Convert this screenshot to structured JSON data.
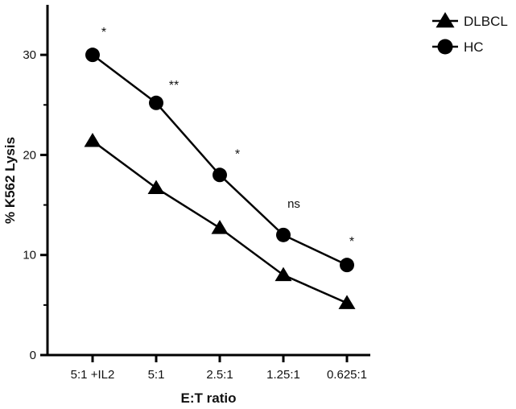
{
  "chart_data": {
    "type": "line",
    "xlabel": "E:T ratio",
    "ylabel": "% K562 Lysis",
    "ylim": [
      0,
      35
    ],
    "yticks": [
      0,
      10,
      20,
      30
    ],
    "categories": [
      "5:1 +IL2",
      "5:1",
      "2.5:1",
      "1.25:1",
      "0.625:1"
    ],
    "grid": false,
    "legend_position": "top-right",
    "series": [
      {
        "name": "DLBCL",
        "marker": "triangle",
        "color": "#000000",
        "values": [
          21.4,
          16.7,
          12.7,
          8.0,
          5.2
        ]
      },
      {
        "name": "HC",
        "marker": "circle",
        "color": "#000000",
        "values": [
          30.0,
          25.2,
          18.0,
          12.0,
          9.0
        ]
      }
    ],
    "annotations": [
      "*",
      "**",
      "*",
      "ns",
      "*"
    ]
  }
}
